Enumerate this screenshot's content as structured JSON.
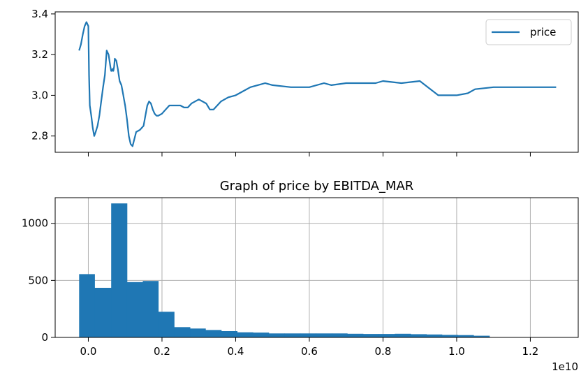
{
  "chart_data": [
    {
      "type": "line",
      "title": "",
      "xlabel": "",
      "ylabel": "",
      "xlim": [
        -0.09,
        1.33
      ],
      "ylim": [
        2.72,
        3.41
      ],
      "y_ticks": [
        {
          "value": 2.8,
          "label": "2.8"
        },
        {
          "value": 3.0,
          "label": "3.0"
        },
        {
          "value": 3.2,
          "label": "3.2"
        },
        {
          "value": 3.4,
          "label": "3.4"
        }
      ],
      "x_tick_values": [
        0.0,
        0.2,
        0.4,
        0.6,
        0.8,
        1.0,
        1.2
      ],
      "x_tick_labels_shown": false,
      "grid": false,
      "legend": {
        "placement": "top-right",
        "entries": [
          "price"
        ]
      },
      "series": [
        {
          "name": "price",
          "color": "#1f77b4",
          "x": [
            -0.025,
            -0.02,
            -0.015,
            -0.01,
            -0.005,
            0.0,
            0.002,
            0.004,
            0.008,
            0.012,
            0.016,
            0.02,
            0.025,
            0.03,
            0.035,
            0.04,
            0.045,
            0.05,
            0.055,
            0.06,
            0.062,
            0.064,
            0.066,
            0.068,
            0.07,
            0.072,
            0.076,
            0.08,
            0.085,
            0.09,
            0.095,
            0.097,
            0.1,
            0.105,
            0.11,
            0.115,
            0.12,
            0.13,
            0.14,
            0.15,
            0.155,
            0.16,
            0.165,
            0.17,
            0.175,
            0.18,
            0.185,
            0.19,
            0.2,
            0.205,
            0.21,
            0.22,
            0.23,
            0.24,
            0.25,
            0.26,
            0.27,
            0.28,
            0.29,
            0.3,
            0.32,
            0.33,
            0.34,
            0.36,
            0.38,
            0.4,
            0.42,
            0.44,
            0.46,
            0.48,
            0.5,
            0.55,
            0.6,
            0.64,
            0.66,
            0.7,
            0.75,
            0.78,
            0.8,
            0.85,
            0.9,
            0.95,
            0.96,
            0.97,
            1.0,
            1.03,
            1.05,
            1.1,
            1.2,
            1.27
          ],
          "y": [
            3.22,
            3.25,
            3.3,
            3.34,
            3.36,
            3.34,
            3.1,
            2.95,
            2.9,
            2.84,
            2.8,
            2.82,
            2.85,
            2.9,
            2.97,
            3.04,
            3.1,
            3.22,
            3.2,
            3.14,
            3.12,
            3.12,
            3.13,
            3.12,
            3.14,
            3.18,
            3.17,
            3.13,
            3.07,
            3.05,
            3.0,
            2.98,
            2.95,
            2.88,
            2.8,
            2.76,
            2.75,
            2.82,
            2.83,
            2.85,
            2.9,
            2.95,
            2.97,
            2.96,
            2.93,
            2.91,
            2.9,
            2.9,
            2.91,
            2.92,
            2.93,
            2.95,
            2.95,
            2.95,
            2.95,
            2.94,
            2.94,
            2.96,
            2.97,
            2.98,
            2.96,
            2.93,
            2.93,
            2.97,
            2.99,
            3.0,
            3.02,
            3.04,
            3.05,
            3.06,
            3.05,
            3.04,
            3.04,
            3.06,
            3.05,
            3.06,
            3.06,
            3.06,
            3.07,
            3.06,
            3.07,
            3.0,
            3.0,
            3.0,
            3.0,
            3.01,
            3.03,
            3.04,
            3.04,
            3.04
          ]
        }
      ]
    },
    {
      "type": "bar",
      "title": "Graph of price by EBITDA_MAR",
      "xlabel": "",
      "ylabel": "",
      "xlim": [
        -0.09,
        1.33
      ],
      "ylim": [
        0,
        1225
      ],
      "x_ticks": [
        {
          "value": 0.0,
          "label": "0.0"
        },
        {
          "value": 0.2,
          "label": "0.2"
        },
        {
          "value": 0.4,
          "label": "0.4"
        },
        {
          "value": 0.6,
          "label": "0.6"
        },
        {
          "value": 0.8,
          "label": "0.8"
        },
        {
          "value": 1.0,
          "label": "1.0"
        },
        {
          "value": 1.2,
          "label": "1.2"
        }
      ],
      "y_ticks": [
        {
          "value": 0,
          "label": "0"
        },
        {
          "value": 500,
          "label": "500"
        },
        {
          "value": 1000,
          "label": "1000"
        }
      ],
      "x_offset_label": "1e10",
      "grid": true,
      "color": "#1f77b4",
      "bin_edges": [
        -0.025,
        0.017,
        0.062,
        0.105,
        0.148,
        0.19,
        0.233,
        0.276,
        0.318,
        0.361,
        0.404,
        0.447,
        0.49,
        0.532,
        0.575,
        0.618,
        0.661,
        0.703,
        0.746,
        0.789,
        0.832,
        0.875,
        0.918,
        0.96,
        1.003,
        1.046,
        1.089,
        1.132,
        1.175,
        1.218,
        1.261
      ],
      "values": [
        555,
        435,
        1175,
        485,
        495,
        225,
        90,
        78,
        65,
        55,
        45,
        42,
        35,
        35,
        35,
        35,
        35,
        32,
        30,
        30,
        32,
        28,
        26,
        22,
        20,
        15,
        0,
        0,
        0,
        0
      ]
    }
  ]
}
